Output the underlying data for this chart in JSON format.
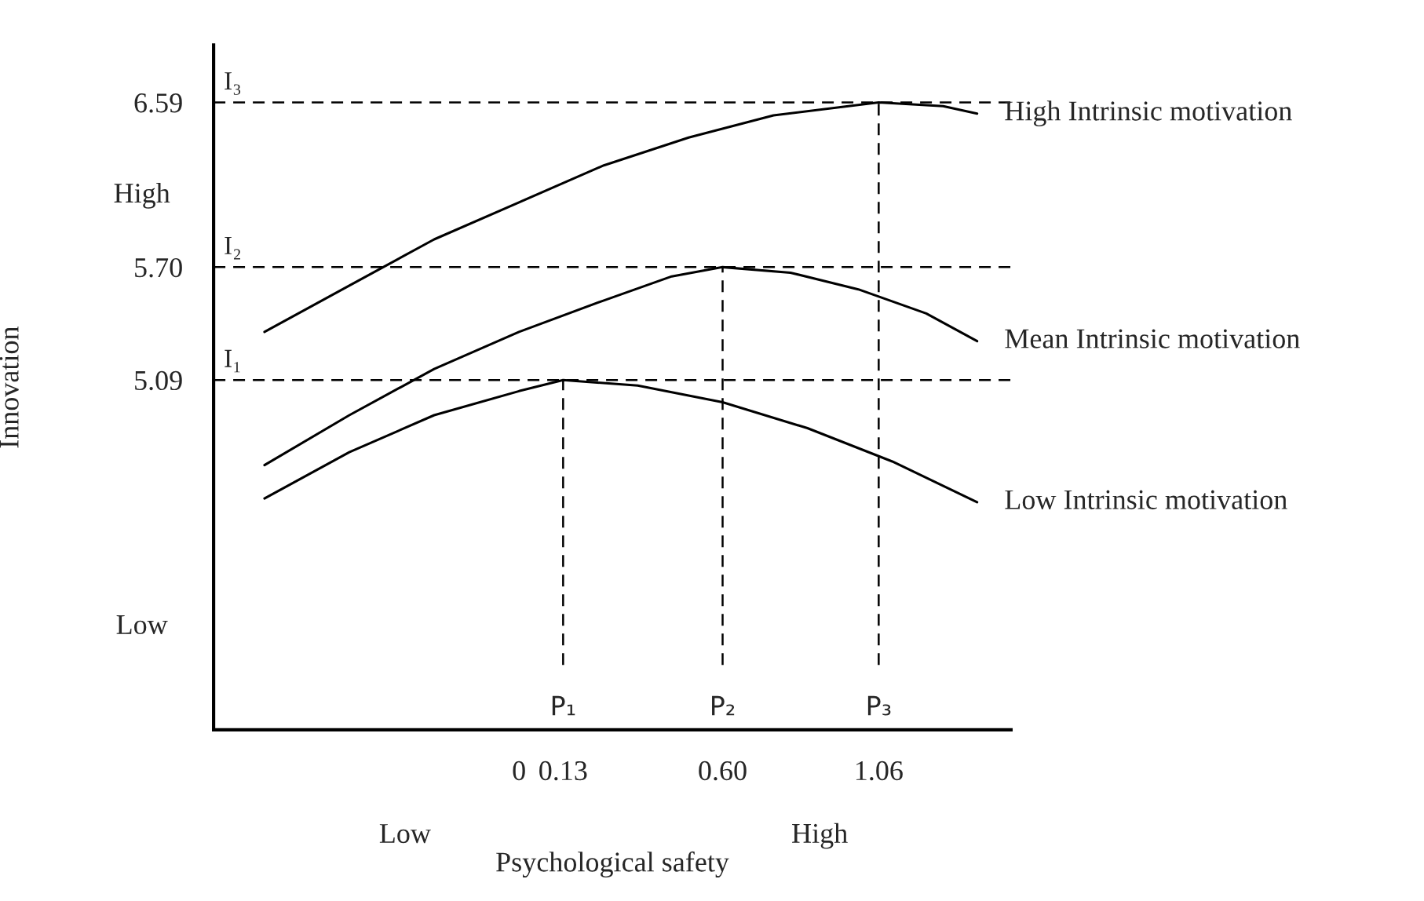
{
  "chart_data": {
    "type": "line",
    "xlabel": "Psychological safety",
    "ylabel": "Innovation",
    "xlim": [
      -0.9,
      1.45
    ],
    "ylim": [
      3.2,
      6.9
    ],
    "xticks": [
      0,
      0.13,
      {
        "value": 0.6,
        "label": "0.60"
      },
      1.06
    ],
    "yticks": [
      5.09,
      {
        "value": 5.7,
        "label": "5.70"
      },
      6.59
    ],
    "grid": false,
    "marker": "none",
    "line_style": "solid",
    "series": [
      {
        "name": "High Intrinsic motivation",
        "color": "#000000",
        "x": [
          -0.75,
          -0.5,
          -0.25,
          0,
          0.25,
          0.5,
          0.75,
          1.06,
          1.25,
          1.35
        ],
        "values": [
          5.35,
          5.6,
          5.85,
          6.05,
          6.25,
          6.4,
          6.52,
          6.59,
          6.57,
          6.53
        ]
      },
      {
        "name": "Mean Intrinsic motivation",
        "color": "#000000",
        "x": [
          -0.75,
          -0.5,
          -0.25,
          0,
          0.25,
          0.45,
          0.6,
          0.8,
          1.0,
          1.2,
          1.35
        ],
        "values": [
          4.63,
          4.9,
          5.15,
          5.35,
          5.52,
          5.65,
          5.7,
          5.67,
          5.58,
          5.45,
          5.3
        ]
      },
      {
        "name": "Low Intrinsic motivation",
        "color": "#000000",
        "x": [
          -0.75,
          -0.5,
          -0.25,
          0,
          0.13,
          0.35,
          0.6,
          0.85,
          1.1,
          1.35
        ],
        "values": [
          4.45,
          4.7,
          4.9,
          5.03,
          5.09,
          5.06,
          4.97,
          4.83,
          4.65,
          4.43
        ]
      }
    ],
    "ref_lines": [
      {
        "axis": "y",
        "value": 6.59,
        "label": "I₃",
        "color": "#000000",
        "line_style": "dashed"
      },
      {
        "axis": "y",
        "value": 5.7,
        "label": "I₂",
        "color": "#000000",
        "line_style": "dashed"
      },
      {
        "axis": "y",
        "value": 5.09,
        "label": "I₁",
        "color": "#000000",
        "line_style": "dashed"
      },
      {
        "axis": "x",
        "value": 0.13,
        "label": "P₁",
        "color": "#000000",
        "line_style": "dashed"
      },
      {
        "axis": "x",
        "value": 0.6,
        "label": "P₂",
        "color": "#000000",
        "line_style": "dashed"
      },
      {
        "axis": "x",
        "value": 1.06,
        "label": "P₃",
        "color": "#000000",
        "line_style": "dashed"
      }
    ],
    "annotations": [
      "High",
      "Low",
      "Low",
      "High"
    ]
  }
}
